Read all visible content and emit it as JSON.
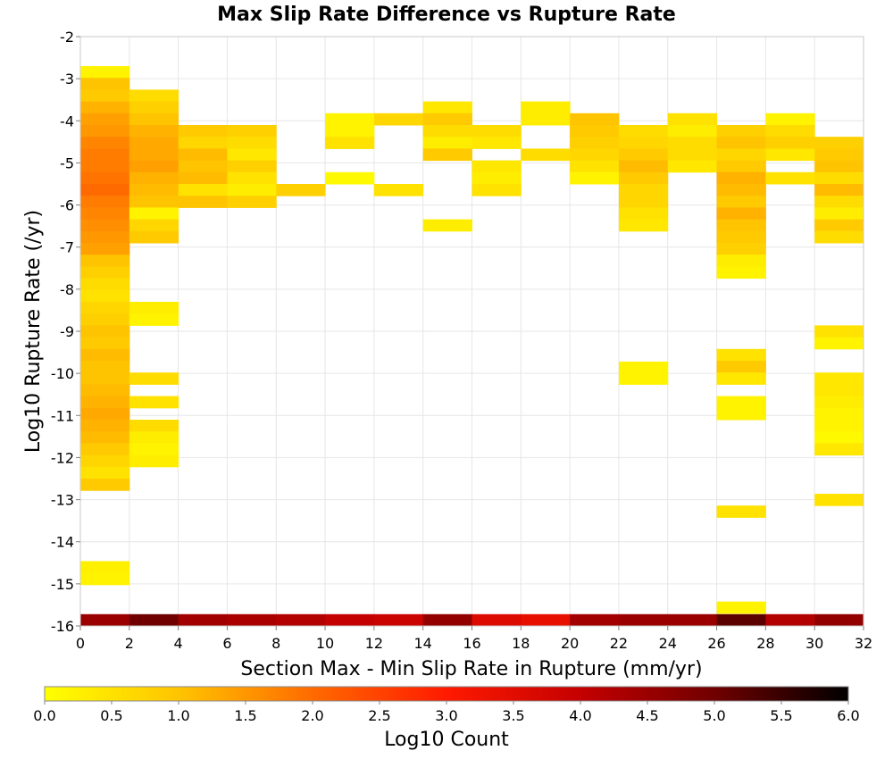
{
  "chart_data": {
    "type": "heatmap",
    "title": "Max Slip Rate Difference vs Rupture Rate",
    "xlabel": "Section Max - Min Slip Rate in Rupture (mm/yr)",
    "ylabel": "Log10 Rupture Rate (/yr)",
    "xlim": [
      0,
      32
    ],
    "ylim": [
      -16,
      -2
    ],
    "x_bin_width": 2,
    "y_bin_height": 0.28,
    "x_ticks": [
      "0",
      "2",
      "4",
      "6",
      "8",
      "10",
      "12",
      "14",
      "16",
      "18",
      "20",
      "22",
      "24",
      "26",
      "28",
      "30",
      "32"
    ],
    "y_ticks": [
      "-2",
      "-3",
      "-4",
      "-5",
      "-6",
      "-7",
      "-8",
      "-9",
      "-10",
      "-11",
      "-12",
      "-13",
      "-14",
      "-15",
      "-16"
    ],
    "colorbar": {
      "label": "Log10 Count",
      "range": [
        0,
        6
      ],
      "ticks": [
        "0.0",
        "0.5",
        "1.0",
        "1.5",
        "2.0",
        "2.5",
        "3.0",
        "3.5",
        "4.0",
        "4.5",
        "5.0",
        "5.5",
        "6.0"
      ],
      "colors": [
        "#ffff00",
        "#ffc400",
        "#ff6a00",
        "#ff1a00",
        "#c40000",
        "#700000",
        "#000000"
      ]
    },
    "columns": [
      {
        "x": 0,
        "cells": [
          [
            -2.98,
            0.2
          ],
          [
            -3.26,
            1.0
          ],
          [
            -3.54,
            0.9
          ],
          [
            -3.82,
            1.2
          ],
          [
            -4.1,
            1.4
          ],
          [
            -4.38,
            1.5
          ],
          [
            -4.66,
            1.7
          ],
          [
            -4.94,
            1.8
          ],
          [
            -5.22,
            1.8
          ],
          [
            -5.5,
            1.9
          ],
          [
            -5.78,
            2.0
          ],
          [
            -6.06,
            1.8
          ],
          [
            -6.34,
            1.7
          ],
          [
            -6.62,
            1.6
          ],
          [
            -6.9,
            1.5
          ],
          [
            -7.18,
            1.4
          ],
          [
            -7.46,
            1.0
          ],
          [
            -7.74,
            0.8
          ],
          [
            -8.02,
            0.6
          ],
          [
            -8.3,
            0.5
          ],
          [
            -8.58,
            0.7
          ],
          [
            -8.86,
            0.8
          ],
          [
            -9.14,
            1.0
          ],
          [
            -9.42,
            0.9
          ],
          [
            -9.7,
            1.1
          ],
          [
            -9.98,
            1.0
          ],
          [
            -10.26,
            1.0
          ],
          [
            -10.54,
            1.1
          ],
          [
            -10.82,
            1.2
          ],
          [
            -11.1,
            1.3
          ],
          [
            -11.38,
            1.2
          ],
          [
            -11.66,
            1.1
          ],
          [
            -11.94,
            0.9
          ],
          [
            -12.22,
            0.7
          ],
          [
            -12.5,
            0.5
          ],
          [
            -12.78,
            0.9
          ],
          [
            -14.74,
            0.25
          ],
          [
            -15.02,
            0.2
          ],
          [
            -16.0,
            4.5
          ]
        ]
      },
      {
        "x": 2,
        "cells": [
          [
            -3.54,
            0.6
          ],
          [
            -3.82,
            0.8
          ],
          [
            -4.1,
            1.0
          ],
          [
            -4.38,
            1.2
          ],
          [
            -4.66,
            1.3
          ],
          [
            -4.94,
            1.3
          ],
          [
            -5.22,
            1.4
          ],
          [
            -5.5,
            1.2
          ],
          [
            -5.78,
            1.1
          ],
          [
            -6.06,
            1.0
          ],
          [
            -6.34,
            0.2
          ],
          [
            -6.62,
            0.7
          ],
          [
            -6.9,
            0.9
          ],
          [
            -8.58,
            0.3
          ],
          [
            -8.86,
            0.2
          ],
          [
            -10.26,
            0.6
          ],
          [
            -10.82,
            0.5
          ],
          [
            -11.38,
            0.6
          ],
          [
            -11.66,
            0.3
          ],
          [
            -11.94,
            0.2
          ],
          [
            -12.22,
            0.3
          ],
          [
            -16.0,
            5.0
          ]
        ]
      },
      {
        "x": 4,
        "cells": [
          [
            -4.38,
            0.9
          ],
          [
            -4.66,
            0.7
          ],
          [
            -4.94,
            1.1
          ],
          [
            -5.22,
            1.0
          ],
          [
            -5.5,
            1.1
          ],
          [
            -5.78,
            0.5
          ],
          [
            -6.06,
            1.0
          ],
          [
            -16.0,
            4.4
          ]
        ]
      },
      {
        "x": 6,
        "cells": [
          [
            -4.38,
            0.8
          ],
          [
            -4.66,
            0.6
          ],
          [
            -4.94,
            0.4
          ],
          [
            -5.22,
            0.8
          ],
          [
            -5.5,
            0.5
          ],
          [
            -5.78,
            0.3
          ],
          [
            -6.06,
            0.8
          ],
          [
            -16.0,
            4.3
          ]
        ]
      },
      {
        "x": 8,
        "cells": [
          [
            -5.78,
            0.8
          ],
          [
            -16.0,
            4.2
          ]
        ]
      },
      {
        "x": 10,
        "cells": [
          [
            -4.1,
            0.2
          ],
          [
            -4.38,
            0.2
          ],
          [
            -4.66,
            0.5
          ],
          [
            -5.5,
            0.1
          ],
          [
            -16.0,
            4.0
          ]
        ]
      },
      {
        "x": 12,
        "cells": [
          [
            -4.1,
            0.7
          ],
          [
            -5.78,
            0.5
          ],
          [
            -16.0,
            3.9
          ]
        ]
      },
      {
        "x": 14,
        "cells": [
          [
            -3.82,
            0.4
          ],
          [
            -4.1,
            0.9
          ],
          [
            -4.38,
            0.6
          ],
          [
            -4.66,
            0.3
          ],
          [
            -4.94,
            0.9
          ],
          [
            -6.62,
            0.3
          ],
          [
            -16.0,
            4.6
          ]
        ]
      },
      {
        "x": 16,
        "cells": [
          [
            -4.38,
            0.6
          ],
          [
            -4.66,
            0.4
          ],
          [
            -5.22,
            0.4
          ],
          [
            -5.5,
            0.3
          ],
          [
            -5.78,
            0.5
          ],
          [
            -16.0,
            3.6
          ]
        ]
      },
      {
        "x": 18,
        "cells": [
          [
            -3.82,
            0.3
          ],
          [
            -4.1,
            0.3
          ],
          [
            -4.94,
            0.6
          ],
          [
            -16.0,
            3.4
          ]
        ]
      },
      {
        "x": 20,
        "cells": [
          [
            -4.1,
            1.0
          ],
          [
            -4.38,
            0.9
          ],
          [
            -4.66,
            0.8
          ],
          [
            -4.94,
            0.7
          ],
          [
            -5.22,
            0.5
          ],
          [
            -5.5,
            0.2
          ],
          [
            -16.0,
            4.4
          ]
        ]
      },
      {
        "x": 22,
        "cells": [
          [
            -4.38,
            0.6
          ],
          [
            -4.66,
            0.7
          ],
          [
            -4.94,
            0.9
          ],
          [
            -5.22,
            1.1
          ],
          [
            -5.5,
            0.9
          ],
          [
            -5.78,
            0.7
          ],
          [
            -6.06,
            0.7
          ],
          [
            -6.34,
            0.5
          ],
          [
            -6.62,
            0.4
          ],
          [
            -10.0,
            0.2
          ],
          [
            -10.26,
            0.2
          ],
          [
            -16.0,
            4.5
          ]
        ]
      },
      {
        "x": 24,
        "cells": [
          [
            -4.1,
            0.5
          ],
          [
            -4.38,
            0.3
          ],
          [
            -4.66,
            0.6
          ],
          [
            -4.94,
            0.6
          ],
          [
            -5.22,
            0.4
          ],
          [
            -16.0,
            4.5
          ]
        ]
      },
      {
        "x": 26,
        "cells": [
          [
            -4.38,
            0.8
          ],
          [
            -4.66,
            1.0
          ],
          [
            -4.94,
            0.7
          ],
          [
            -5.22,
            0.9
          ],
          [
            -5.5,
            1.2
          ],
          [
            -5.78,
            1.1
          ],
          [
            -6.06,
            0.9
          ],
          [
            -6.34,
            1.2
          ],
          [
            -6.62,
            1.0
          ],
          [
            -6.9,
            0.9
          ],
          [
            -7.18,
            0.8
          ],
          [
            -7.46,
            0.3
          ],
          [
            -7.74,
            0.2
          ],
          [
            -9.7,
            0.5
          ],
          [
            -9.98,
            0.9
          ],
          [
            -10.26,
            0.4
          ],
          [
            -10.82,
            0.2
          ],
          [
            -11.1,
            0.2
          ],
          [
            -13.42,
            0.5
          ],
          [
            -15.7,
            0.2
          ],
          [
            -16.0,
            5.2
          ]
        ]
      },
      {
        "x": 28,
        "cells": [
          [
            -4.1,
            0.2
          ],
          [
            -4.38,
            0.6
          ],
          [
            -4.66,
            0.8
          ],
          [
            -4.94,
            0.4
          ],
          [
            -5.5,
            0.5
          ],
          [
            -16.0,
            4.2
          ]
        ]
      },
      {
        "x": 30,
        "cells": [
          [
            -4.66,
            0.8
          ],
          [
            -4.94,
            0.9
          ],
          [
            -5.22,
            1.0
          ],
          [
            -5.5,
            0.6
          ],
          [
            -5.78,
            1.1
          ],
          [
            -6.06,
            0.6
          ],
          [
            -6.34,
            0.3
          ],
          [
            -6.62,
            0.9
          ],
          [
            -6.9,
            0.6
          ],
          [
            -9.14,
            0.5
          ],
          [
            -9.42,
            0.2
          ],
          [
            -10.26,
            0.4
          ],
          [
            -10.54,
            0.4
          ],
          [
            -10.82,
            0.3
          ],
          [
            -11.1,
            0.2
          ],
          [
            -11.38,
            0.2
          ],
          [
            -11.66,
            0.1
          ],
          [
            -11.94,
            0.4
          ],
          [
            -13.14,
            0.5
          ],
          [
            -16.0,
            4.6
          ]
        ]
      }
    ]
  }
}
